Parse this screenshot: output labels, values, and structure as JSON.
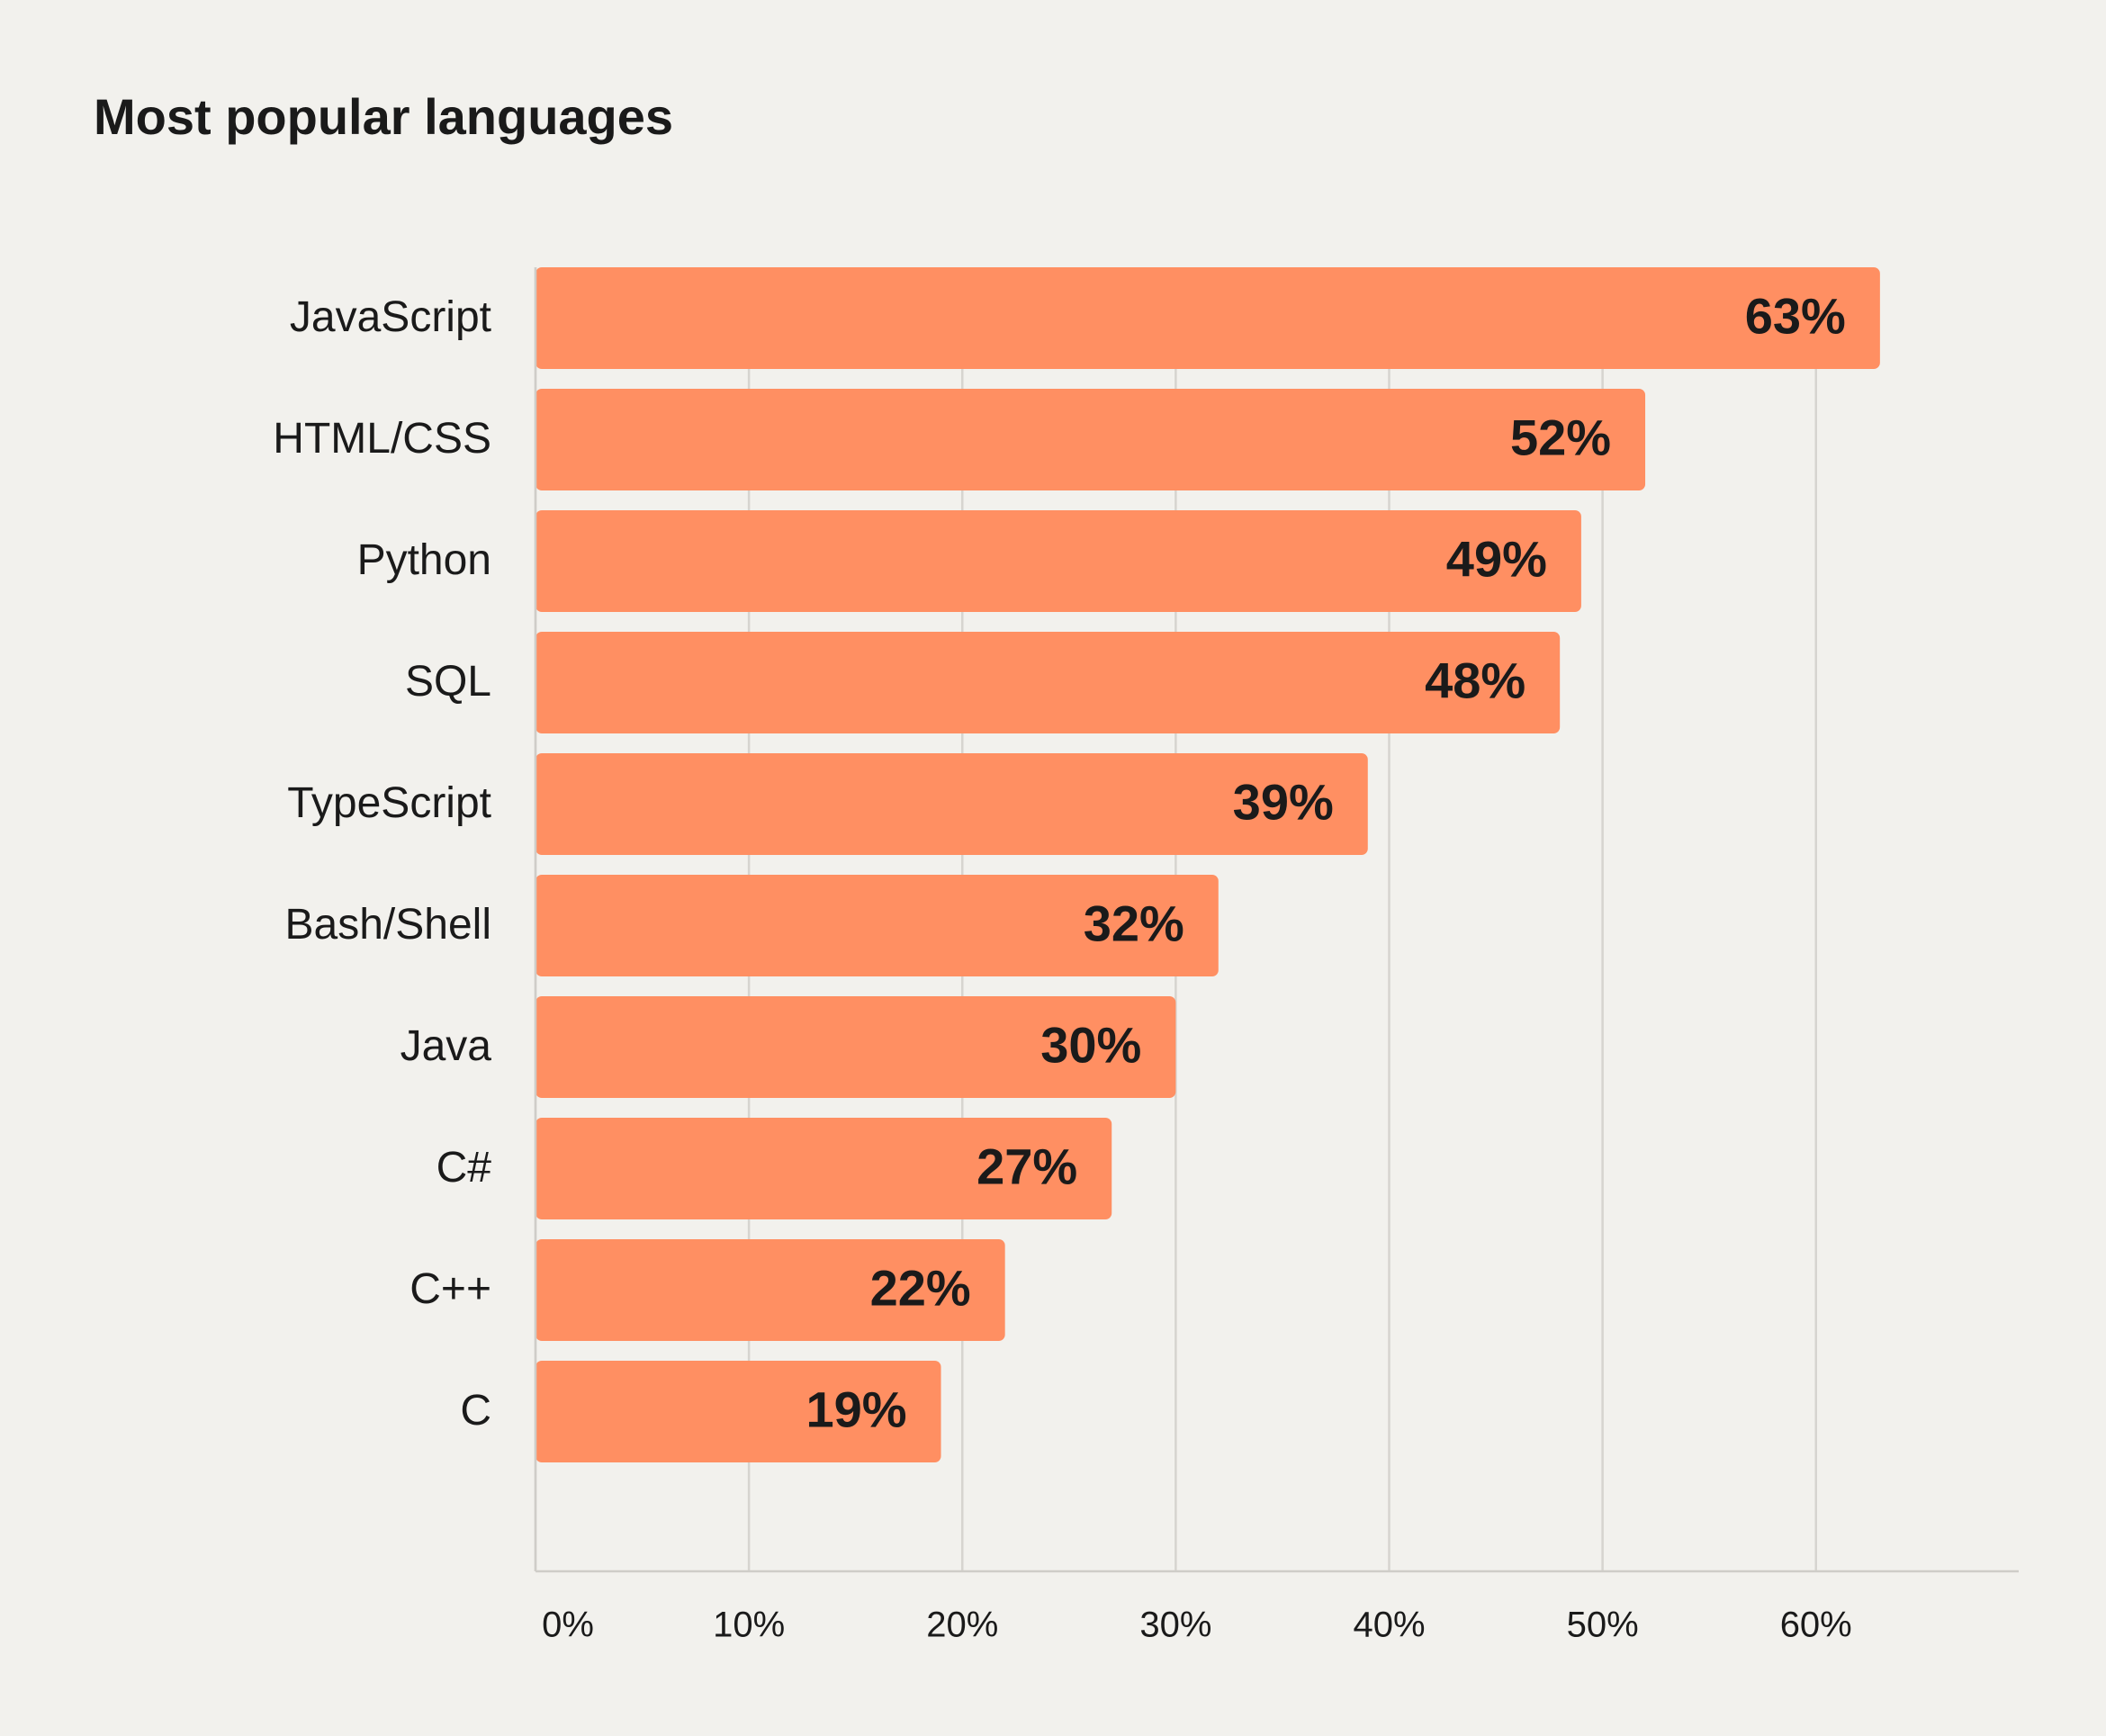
{
  "chart_data": {
    "type": "bar",
    "orientation": "horizontal",
    "title": "Most popular languages",
    "categories": [
      "JavaScript",
      "HTML/CSS",
      "Python",
      "SQL",
      "TypeScript",
      "Bash/Shell",
      "Java",
      "C#",
      "C++",
      "C"
    ],
    "values": [
      63,
      52,
      49,
      48,
      39,
      32,
      30,
      27,
      22,
      19
    ],
    "value_labels": [
      "63%",
      "52%",
      "49%",
      "48%",
      "39%",
      "32%",
      "30%",
      "27%",
      "22%",
      "19%"
    ],
    "color": "#ff8f62",
    "xlim": [
      0,
      69.5
    ],
    "xticks": [
      {
        "value": 0,
        "label": "0%"
      },
      {
        "value": 10,
        "label": "10%"
      },
      {
        "value": 20,
        "label": "20%"
      },
      {
        "value": 30,
        "label": "30%"
      },
      {
        "value": 40,
        "label": "40%"
      },
      {
        "value": 50,
        "label": "50%"
      },
      {
        "value": 60,
        "label": "60%"
      }
    ],
    "grid": true
  }
}
